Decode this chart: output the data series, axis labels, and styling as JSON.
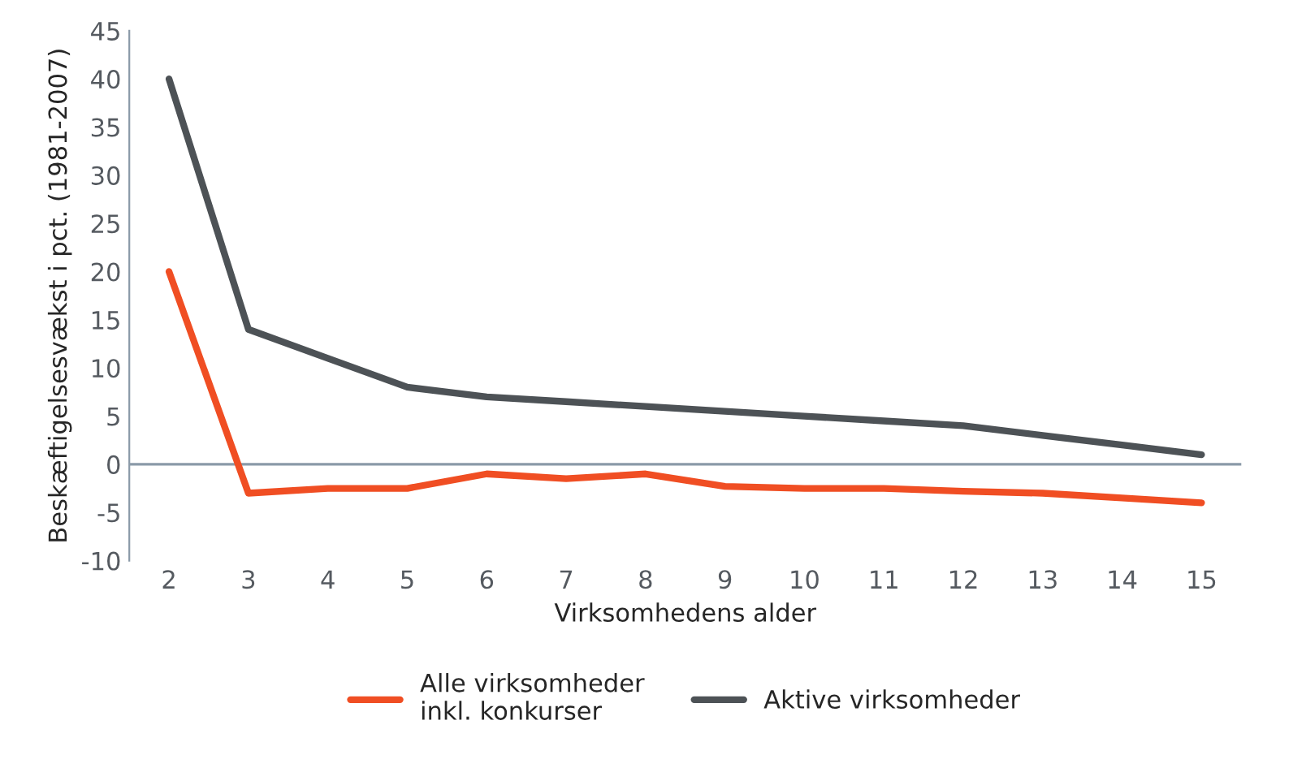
{
  "chart_data": {
    "type": "line",
    "xlabel": "Virksomhedens alder",
    "ylabel": "Beskæftigelsesvækst i pct. (1981-2007)",
    "categories": [
      "2",
      "3",
      "4",
      "5",
      "6",
      "7",
      "8",
      "9",
      "10",
      "11",
      "12",
      "13",
      "14",
      "15"
    ],
    "series": [
      {
        "name": "Alle virksomheder\ninkl. konkurser",
        "color": "#f04e23",
        "values": [
          20,
          -3,
          -2.5,
          -2.5,
          -1,
          -1.5,
          -1,
          -2.3,
          -2.5,
          -2.5,
          -2.8,
          -3,
          -3.5,
          -4
        ]
      },
      {
        "name": "Aktive virksomheder",
        "color": "#4d5256",
        "values": [
          40,
          14,
          11,
          8,
          7,
          6.5,
          6,
          5.5,
          5,
          4.5,
          4,
          3,
          2,
          1
        ]
      }
    ],
    "ylim": [
      -10,
      45
    ],
    "yticks": [
      -10,
      -5,
      0,
      5,
      10,
      15,
      20,
      25,
      30,
      35,
      40,
      45
    ],
    "ref_lines": [
      {
        "axis": "y",
        "value": 0,
        "color": "#8a9aa8"
      }
    ],
    "grid": false,
    "legend": "bottom",
    "marker": "none",
    "line_style": "solid"
  }
}
